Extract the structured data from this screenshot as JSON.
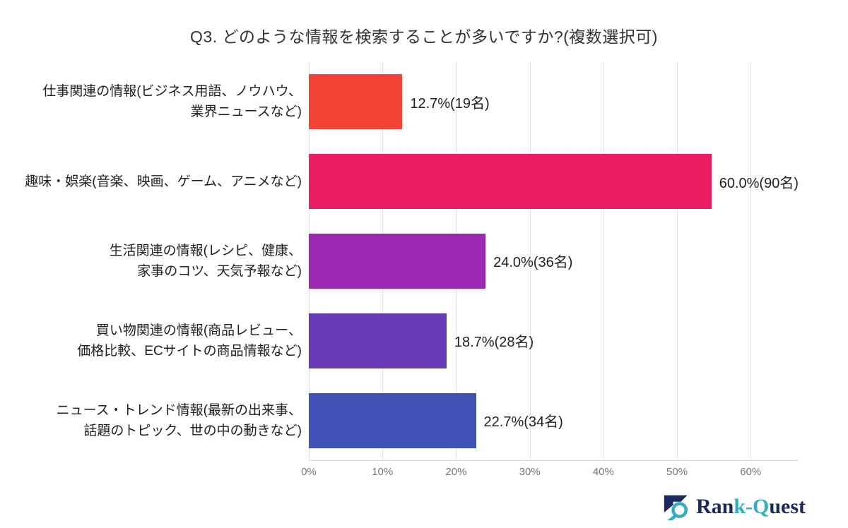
{
  "title": "Q3. どのような情報を検索することが多いですか?(複数選択可)",
  "chart_data": {
    "type": "bar",
    "orientation": "horizontal",
    "title": "Q3. どのような情報を検索することが多いですか?(複数選択可)",
    "categories": [
      "仕事関連の情報(ビジネス用語、ノウハウ、\n業界ニュースなど)",
      "趣味・娯楽(音楽、映画、ゲーム、アニメなど)",
      "生活関連の情報(レシピ、健康、\n家事のコツ、天気予報など)",
      "買い物関連の情報(商品レビュー、\n価格比較、ECサイトの商品情報など)",
      "ニュース・トレンド情報(最新の出来事、\n話題のトピック、世の中の動きなど)"
    ],
    "values": [
      12.7,
      60.0,
      24.0,
      18.7,
      22.7
    ],
    "counts": [
      19,
      90,
      36,
      28,
      34
    ],
    "value_labels": [
      "12.7%(19名)",
      "60.0%(90名)",
      "24.0%(36名)",
      "18.7%(28名)",
      "22.7%(34名)"
    ],
    "bar_colors": [
      "#f44336",
      "#e91e63",
      "#9c27b0",
      "#673ab7",
      "#3f51b5"
    ],
    "x_ticks": [
      "0%",
      "10%",
      "20%",
      "30%",
      "40%",
      "50%",
      "60%"
    ],
    "x_tick_values": [
      0,
      10,
      20,
      30,
      40,
      50,
      60
    ],
    "xlim": [
      0,
      66.5
    ],
    "xlabel": "",
    "ylabel": "",
    "grid": "vertical",
    "legend": "none"
  },
  "logo": {
    "name": "Rank-Quest",
    "segments": [
      {
        "text": "Ran",
        "color": "#1b2a5c"
      },
      {
        "text": "k-Q",
        "color": "#36aec1"
      },
      {
        "text": "uest",
        "color": "#1b2a5c"
      }
    ],
    "icon_colors": {
      "navy": "#1b2a5c",
      "teal": "#36aec1"
    }
  },
  "colors": {
    "background": "#ffffff",
    "title_text": "#333333",
    "label_text": "#212121",
    "tick_text": "#757575",
    "gridline": "#e4e4e4",
    "axis_line": "#d9d9d9"
  }
}
